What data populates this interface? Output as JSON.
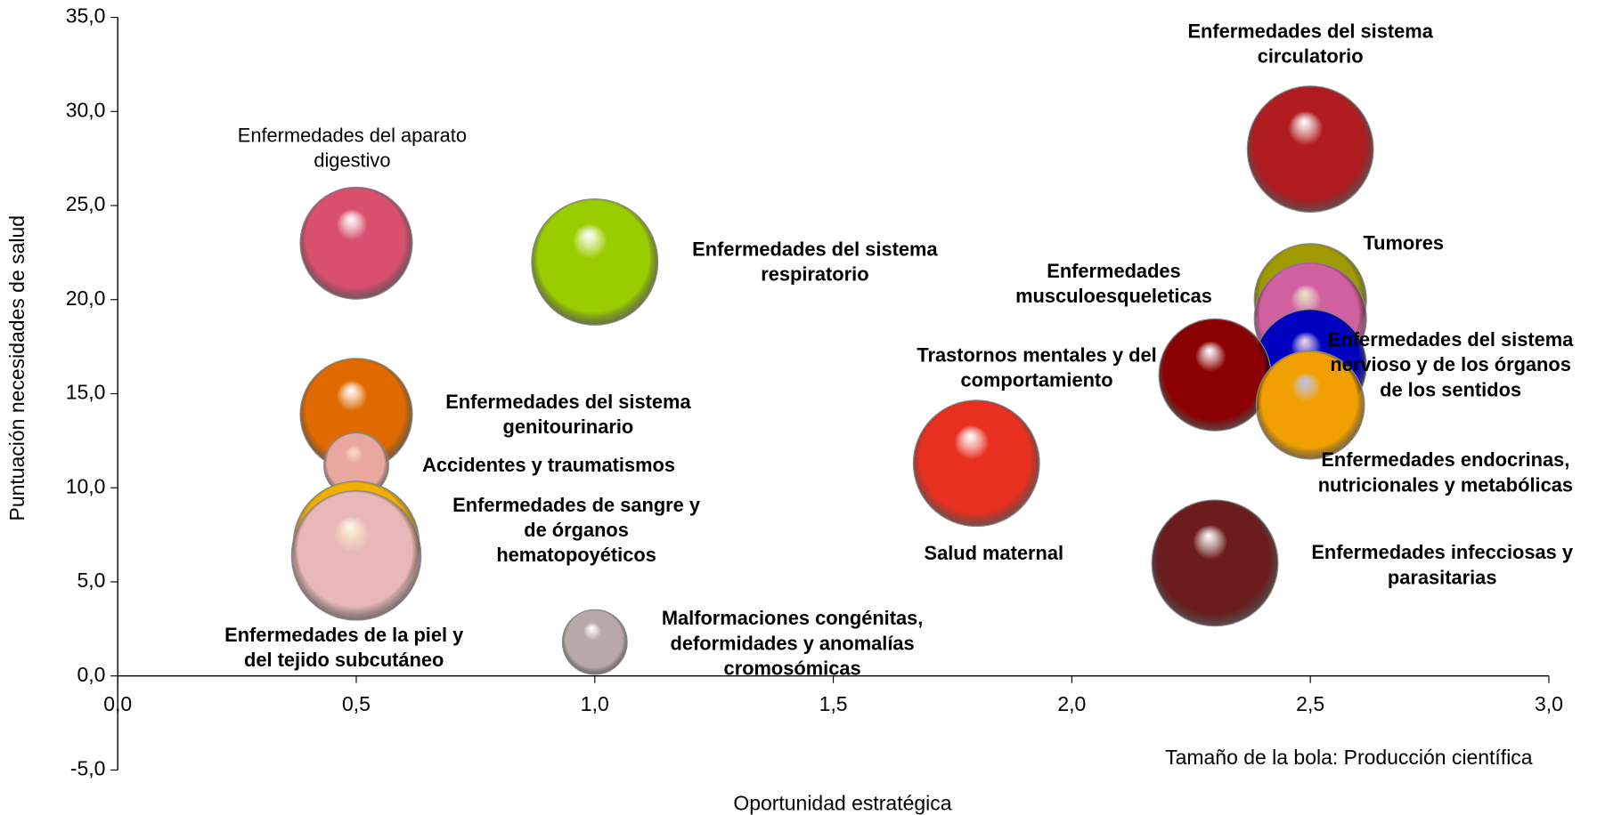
{
  "chart_data": {
    "type": "bubble",
    "x_label": "Oportunidad estratégica",
    "y_label": "Puntuación necesidades de salud",
    "annotation": "Tamaño de la bola: Producción científica",
    "xlim": [
      0,
      3
    ],
    "ylim": [
      -5,
      35
    ],
    "xticks": [
      {
        "value": 0,
        "label": "0,0"
      },
      {
        "value": 0.5,
        "label": "0,5"
      },
      {
        "value": 1,
        "label": "1,0"
      },
      {
        "value": 1.5,
        "label": "1,5"
      },
      {
        "value": 2,
        "label": "2,0"
      },
      {
        "value": 2.5,
        "label": "2,5"
      },
      {
        "value": 3,
        "label": "3,0"
      }
    ],
    "yticks": [
      {
        "value": -5,
        "label": "-5,0"
      },
      {
        "value": 0,
        "label": "0,0"
      },
      {
        "value": 5,
        "label": "5,0"
      },
      {
        "value": 10,
        "label": "10,0"
      },
      {
        "value": 15,
        "label": "15,0"
      },
      {
        "value": 20,
        "label": "20,0"
      },
      {
        "value": 25,
        "label": "25,0"
      },
      {
        "value": 30,
        "label": "30,0"
      },
      {
        "value": 35,
        "label": "35,0"
      }
    ],
    "series": [
      {
        "name": [
          "Enfermedades del aparato",
          "digestivo"
        ],
        "color": "#d9506e",
        "x": [
          0.5
        ],
        "values": [
          23.0
        ],
        "sizes": [
          30
        ]
      },
      {
        "name": [
          "Enfermedades del sistema",
          "respiratorio"
        ],
        "color": "#9acd00",
        "x": [
          1.0
        ],
        "values": [
          22.0
        ],
        "sizes": [
          38
        ]
      },
      {
        "name": [
          "Enfermedades del sistema",
          "genitourinario"
        ],
        "color": "#e06a00",
        "x": [
          0.5
        ],
        "values": [
          13.9
        ],
        "sizes": [
          30
        ]
      },
      {
        "name": [
          "Accidentes y traumatismos"
        ],
        "color": "#e8a8a0",
        "x": [
          0.5
        ],
        "values": [
          11.2
        ],
        "sizes": [
          10
        ]
      },
      {
        "name": [
          "Enfermedades de sangre y",
          "de órganos",
          "hematopoyéticos"
        ],
        "color": "#f0b000",
        "x": [
          0.5
        ],
        "values": [
          7.0
        ],
        "sizes": [
          38
        ]
      },
      {
        "name": [
          "Enfermedades de la piel y",
          "del tejido subcutáneo"
        ],
        "color": "#e8b8b8",
        "x": [
          0.5
        ],
        "values": [
          6.4
        ],
        "sizes": [
          40
        ]
      },
      {
        "name": [
          "Malformaciones congénitas,",
          "deformidades y anomalías",
          "cromosómicas"
        ],
        "color": "#b8a8a8",
        "x": [
          1.0
        ],
        "values": [
          1.8
        ],
        "sizes": [
          10
        ]
      },
      {
        "name": [
          "Salud maternal"
        ],
        "color": "#e83020",
        "x": [
          1.8
        ],
        "values": [
          11.3
        ],
        "sizes": [
          38
        ]
      },
      {
        "name": [
          "Tumores"
        ],
        "color": "#a09a00",
        "x": [
          2.5
        ],
        "values": [
          20.0
        ],
        "sizes": [
          30
        ]
      },
      {
        "name": [
          "Enfermedades",
          "musculoesqueleticas"
        ],
        "color": "#d060a0",
        "x": [
          2.5
        ],
        "values": [
          19.0
        ],
        "sizes": [
          30
        ]
      },
      {
        "name": [
          "Enfermedades del sistema",
          "nervioso y de los órganos",
          "de los sentidos"
        ],
        "color": "#0000c0",
        "x": [
          2.5
        ],
        "values": [
          16.5
        ],
        "sizes": [
          30
        ]
      },
      {
        "name": [
          "Trastornos mentales y del",
          "comportamiento"
        ],
        "color": "#8b0000",
        "x": [
          2.3
        ],
        "values": [
          16.0
        ],
        "sizes": [
          30
        ]
      },
      {
        "name": [
          "Enfermedades endocrinas,",
          "nutricionales y metabólicas"
        ],
        "color": "#f0a000",
        "x": [
          2.5
        ],
        "values": [
          14.4
        ],
        "sizes": [
          28
        ]
      },
      {
        "name": [
          "Enfermedades del sistema",
          "circulatorio"
        ],
        "color": "#b01c20",
        "x": [
          2.5
        ],
        "values": [
          28.0
        ],
        "sizes": [
          38
        ]
      },
      {
        "name": [
          "Enfermedades infecciosas y",
          "parasitarias"
        ],
        "color": "#6b1c1c",
        "x": [
          2.3
        ],
        "values": [
          6.0
        ],
        "sizes": [
          38
        ]
      }
    ]
  }
}
